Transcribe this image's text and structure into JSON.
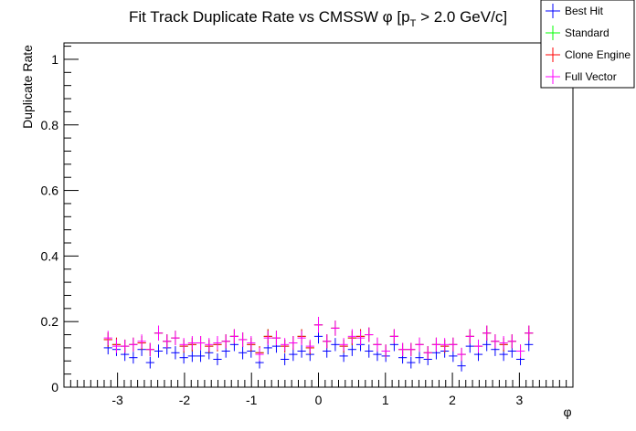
{
  "chart_data": {
    "type": "scatter",
    "title": {
      "main": "Fit Track Duplicate Rate vs CMSSW ",
      "phi": "φ",
      "bracket_open": " [p",
      "sub": "T",
      "cut": " > 2.0 GeV/c]"
    },
    "xlabel": "φ",
    "ylabel": "Duplicate Rate",
    "xlim": [
      -3.8,
      3.8
    ],
    "ylim": [
      0,
      1.05
    ],
    "x_ticks": [
      -3,
      -2,
      -1,
      0,
      1,
      2,
      3
    ],
    "x_tick_labels": [
      "-3",
      "-2",
      "-1",
      "0",
      "1",
      "2",
      "3"
    ],
    "y_ticks": [
      0,
      0.2,
      0.4,
      0.6,
      0.8,
      1
    ],
    "y_tick_labels": [
      "0",
      "0.2",
      "0.4",
      "0.6",
      "0.8",
      "1"
    ],
    "x": [
      -3.1416,
      -3.0159,
      -2.8903,
      -2.7646,
      -2.6389,
      -2.5133,
      -2.3876,
      -2.2619,
      -2.1363,
      -2.0106,
      -1.885,
      -1.7593,
      -1.6336,
      -1.508,
      -1.3823,
      -1.2566,
      -1.131,
      -1.0053,
      -0.8796,
      -0.754,
      -0.6283,
      -0.5027,
      -0.377,
      -0.2513,
      -0.1257,
      0.0,
      0.1257,
      0.2513,
      0.377,
      0.5027,
      0.6283,
      0.754,
      0.8796,
      1.0053,
      1.131,
      1.2566,
      1.3823,
      1.508,
      1.6336,
      1.7593,
      1.885,
      2.0106,
      2.1363,
      2.2619,
      2.3876,
      2.5133,
      2.6389,
      2.7646,
      2.8903,
      3.0159,
      3.1416
    ],
    "x_err": 0.0628,
    "legend_position": "top-right",
    "series": [
      {
        "name": "Best Hit",
        "color": "#0000ff",
        "values": [
          0.12,
          0.115,
          0.1,
          0.09,
          0.115,
          0.075,
          0.11,
          0.12,
          0.105,
          0.09,
          0.095,
          0.095,
          0.105,
          0.085,
          0.11,
          0.13,
          0.105,
          0.11,
          0.075,
          0.12,
          0.125,
          0.085,
          0.1,
          0.11,
          0.1,
          0.155,
          0.11,
          0.13,
          0.095,
          0.115,
          0.13,
          0.11,
          0.1,
          0.095,
          0.13,
          0.09,
          0.075,
          0.09,
          0.085,
          0.105,
          0.11,
          0.095,
          0.065,
          0.125,
          0.1,
          0.13,
          0.115,
          0.1,
          0.11,
          0.085,
          0.13
        ],
        "err": [
          0.02,
          0.02,
          0.02,
          0.018,
          0.02,
          0.018,
          0.02,
          0.02,
          0.02,
          0.018,
          0.018,
          0.018,
          0.02,
          0.018,
          0.02,
          0.02,
          0.02,
          0.02,
          0.018,
          0.02,
          0.02,
          0.018,
          0.02,
          0.02,
          0.02,
          0.022,
          0.02,
          0.02,
          0.018,
          0.02,
          0.02,
          0.02,
          0.02,
          0.018,
          0.02,
          0.018,
          0.018,
          0.018,
          0.018,
          0.02,
          0.02,
          0.018,
          0.017,
          0.02,
          0.02,
          0.02,
          0.02,
          0.02,
          0.02,
          0.018,
          0.02
        ]
      },
      {
        "name": "Standard",
        "color": "#00ff00",
        "values": [
          0.145,
          0.13,
          0.125,
          0.13,
          0.135,
          0.115,
          0.165,
          0.14,
          0.15,
          0.125,
          0.13,
          0.135,
          0.125,
          0.13,
          0.14,
          0.155,
          0.145,
          0.13,
          0.105,
          0.155,
          0.15,
          0.125,
          0.135,
          0.155,
          0.12,
          0.19,
          0.14,
          0.18,
          0.125,
          0.15,
          0.155,
          0.16,
          0.13,
          0.11,
          0.155,
          0.115,
          0.115,
          0.13,
          0.105,
          0.13,
          0.125,
          0.13,
          0.1,
          0.155,
          0.125,
          0.165,
          0.14,
          0.13,
          0.14,
          0.11,
          0.165
        ],
        "err": [
          0.022,
          0.021,
          0.02,
          0.021,
          0.021,
          0.02,
          0.023,
          0.021,
          0.022,
          0.02,
          0.021,
          0.021,
          0.02,
          0.021,
          0.021,
          0.022,
          0.022,
          0.021,
          0.02,
          0.022,
          0.022,
          0.02,
          0.021,
          0.022,
          0.02,
          0.024,
          0.021,
          0.023,
          0.02,
          0.022,
          0.022,
          0.022,
          0.021,
          0.02,
          0.022,
          0.02,
          0.02,
          0.021,
          0.02,
          0.021,
          0.02,
          0.021,
          0.02,
          0.022,
          0.02,
          0.023,
          0.021,
          0.021,
          0.021,
          0.02,
          0.023
        ]
      },
      {
        "name": "Clone Engine",
        "color": "#ff0000",
        "values": [
          0.145,
          0.13,
          0.125,
          0.13,
          0.135,
          0.115,
          0.165,
          0.14,
          0.15,
          0.125,
          0.13,
          0.135,
          0.125,
          0.13,
          0.14,
          0.155,
          0.145,
          0.13,
          0.105,
          0.155,
          0.15,
          0.125,
          0.135,
          0.155,
          0.12,
          0.19,
          0.14,
          0.18,
          0.125,
          0.15,
          0.155,
          0.16,
          0.13,
          0.11,
          0.155,
          0.115,
          0.115,
          0.13,
          0.105,
          0.13,
          0.125,
          0.13,
          0.1,
          0.155,
          0.125,
          0.165,
          0.14,
          0.13,
          0.14,
          0.11,
          0.165
        ],
        "err": [
          0.022,
          0.021,
          0.02,
          0.021,
          0.021,
          0.02,
          0.023,
          0.021,
          0.022,
          0.02,
          0.021,
          0.021,
          0.02,
          0.021,
          0.021,
          0.022,
          0.022,
          0.021,
          0.02,
          0.022,
          0.022,
          0.02,
          0.021,
          0.022,
          0.02,
          0.024,
          0.021,
          0.023,
          0.02,
          0.022,
          0.022,
          0.022,
          0.021,
          0.02,
          0.022,
          0.02,
          0.02,
          0.021,
          0.02,
          0.021,
          0.02,
          0.021,
          0.02,
          0.022,
          0.02,
          0.023,
          0.021,
          0.021,
          0.021,
          0.02,
          0.023
        ]
      },
      {
        "name": "Full Vector",
        "color": "#ff00ff",
        "values": [
          0.15,
          0.125,
          0.125,
          0.13,
          0.14,
          0.115,
          0.165,
          0.14,
          0.15,
          0.13,
          0.135,
          0.135,
          0.13,
          0.135,
          0.14,
          0.155,
          0.145,
          0.135,
          0.1,
          0.15,
          0.15,
          0.13,
          0.135,
          0.15,
          0.125,
          0.19,
          0.14,
          0.18,
          0.13,
          0.155,
          0.15,
          0.16,
          0.13,
          0.11,
          0.155,
          0.115,
          0.115,
          0.13,
          0.105,
          0.13,
          0.13,
          0.13,
          0.1,
          0.155,
          0.125,
          0.165,
          0.14,
          0.135,
          0.14,
          0.11,
          0.165
        ],
        "err": [
          0.022,
          0.021,
          0.02,
          0.021,
          0.021,
          0.02,
          0.023,
          0.021,
          0.022,
          0.02,
          0.021,
          0.021,
          0.02,
          0.021,
          0.021,
          0.022,
          0.022,
          0.021,
          0.02,
          0.022,
          0.022,
          0.02,
          0.021,
          0.022,
          0.02,
          0.024,
          0.021,
          0.023,
          0.02,
          0.022,
          0.022,
          0.022,
          0.021,
          0.02,
          0.022,
          0.02,
          0.02,
          0.021,
          0.02,
          0.021,
          0.02,
          0.021,
          0.02,
          0.022,
          0.02,
          0.023,
          0.021,
          0.021,
          0.021,
          0.02,
          0.023
        ]
      }
    ]
  }
}
